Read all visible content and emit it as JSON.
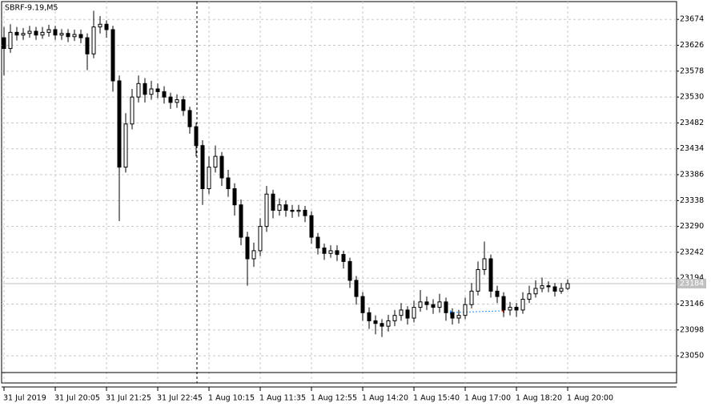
{
  "chart_data": {
    "type": "candlestick",
    "title": "SBRF-9.19,M5",
    "categories": [
      "31 Jul 2019",
      null,
      null,
      null,
      null,
      null,
      null,
      null,
      "31 Jul 20:05",
      null,
      null,
      null,
      null,
      null,
      null,
      null,
      "31 Jul 21:25",
      null,
      null,
      null,
      null,
      null,
      null,
      null,
      "31 Jul 22:45",
      null,
      null,
      null,
      null,
      null,
      null,
      null,
      "1 Aug 10:15",
      null,
      null,
      null,
      null,
      null,
      null,
      null,
      "1 Aug 11:35",
      null,
      null,
      null,
      null,
      null,
      null,
      null,
      "1 Aug 12:55",
      null,
      null,
      null,
      null,
      null,
      null,
      null,
      "1 Aug 14:20",
      null,
      null,
      null,
      null,
      null,
      null,
      null,
      "1 Aug 15:40",
      null,
      null,
      null,
      null,
      null,
      null,
      null,
      "1 Aug 17:00",
      null,
      null,
      null,
      null,
      null,
      null,
      null,
      "1 Aug 18:20",
      null,
      null,
      null,
      null,
      null,
      null,
      null,
      "1 Aug 20:00"
    ],
    "open": [
      23640,
      23620,
      23650,
      23645,
      23648,
      23652,
      23645,
      23650,
      23655,
      23645,
      23648,
      23642,
      23646,
      23640,
      23610,
      23660,
      23665,
      23655,
      23560,
      23400,
      23480,
      23530,
      23555,
      23535,
      23545,
      23540,
      23530,
      23520,
      23525,
      23505,
      23475,
      23440,
      23360,
      23400,
      23420,
      23380,
      23360,
      23330,
      23270,
      23230,
      23245,
      23290,
      23350,
      23320,
      23330,
      23320,
      23318,
      23320,
      23310,
      23270,
      23250,
      23240,
      23245,
      23238,
      23225,
      23190,
      23160,
      23130,
      23115,
      23110,
      23105,
      23115,
      23125,
      23135,
      23120,
      23140,
      23150,
      23145,
      23140,
      23150,
      23130,
      23120,
      23125,
      23145,
      23170,
      23210,
      23230,
      23170,
      23160,
      23135,
      23140,
      23135,
      23155,
      23165,
      23175,
      23180,
      23178,
      23170,
      23175
    ],
    "high": [
      23660,
      23665,
      23660,
      23658,
      23662,
      23660,
      23660,
      23664,
      23662,
      23656,
      23656,
      23655,
      23655,
      23648,
      23690,
      23680,
      23672,
      23662,
      23570,
      23500,
      23545,
      23570,
      23565,
      23560,
      23555,
      23550,
      23538,
      23535,
      23532,
      23512,
      23482,
      23450,
      23420,
      23440,
      23428,
      23395,
      23370,
      23340,
      23280,
      23260,
      23305,
      23365,
      23358,
      23342,
      23338,
      23330,
      23330,
      23328,
      23318,
      23278,
      23258,
      23255,
      23255,
      23245,
      23232,
      23198,
      23168,
      23140,
      23125,
      23118,
      23126,
      23135,
      23148,
      23142,
      23152,
      23172,
      23160,
      23155,
      23165,
      23158,
      23138,
      23135,
      23158,
      23185,
      23225,
      23262,
      23238,
      23180,
      23168,
      23150,
      23148,
      23168,
      23180,
      23190,
      23195,
      23188,
      23185,
      23185,
      23192
    ],
    "low": [
      23570,
      23612,
      23635,
      23636,
      23640,
      23636,
      23638,
      23642,
      23636,
      23636,
      23632,
      23634,
      23630,
      23580,
      23602,
      23648,
      23640,
      23540,
      23300,
      23390,
      23470,
      23520,
      23520,
      23525,
      23528,
      23518,
      23508,
      23510,
      23495,
      23462,
      23420,
      23330,
      23350,
      23390,
      23365,
      23345,
      23310,
      23255,
      23180,
      23215,
      23235,
      23280,
      23305,
      23310,
      23308,
      23306,
      23308,
      23298,
      23258,
      23238,
      23228,
      23232,
      23226,
      23212,
      23176,
      23145,
      23115,
      23100,
      23090,
      23085,
      23095,
      23105,
      23115,
      23108,
      23112,
      23132,
      23135,
      23128,
      23130,
      23115,
      23108,
      23110,
      23118,
      23138,
      23162,
      23200,
      23158,
      23148,
      23122,
      23125,
      23122,
      23128,
      23148,
      23158,
      23168,
      23168,
      23160,
      23165,
      23172
    ],
    "close": [
      23620,
      23650,
      23645,
      23648,
      23652,
      23645,
      23650,
      23655,
      23645,
      23648,
      23642,
      23646,
      23640,
      23610,
      23660,
      23665,
      23655,
      23560,
      23400,
      23480,
      23530,
      23555,
      23535,
      23545,
      23540,
      23530,
      23520,
      23525,
      23505,
      23475,
      23440,
      23360,
      23400,
      23420,
      23380,
      23360,
      23330,
      23270,
      23230,
      23245,
      23290,
      23350,
      23320,
      23330,
      23320,
      23318,
      23320,
      23310,
      23270,
      23250,
      23240,
      23245,
      23238,
      23225,
      23190,
      23160,
      23130,
      23115,
      23110,
      23105,
      23115,
      23125,
      23135,
      23120,
      23140,
      23150,
      23145,
      23140,
      23150,
      23130,
      23120,
      23125,
      23145,
      23170,
      23210,
      23230,
      23170,
      23160,
      23135,
      23140,
      23135,
      23155,
      23165,
      23175,
      23180,
      23178,
      23170,
      23175,
      23184
    ],
    "last_price": 23184,
    "ylim": [
      23019,
      23707
    ],
    "yticks": [
      23050,
      23098,
      23146,
      23194,
      23242,
      23290,
      23338,
      23386,
      23434,
      23482,
      23530,
      23578,
      23626,
      23674
    ],
    "grid": true
  }
}
